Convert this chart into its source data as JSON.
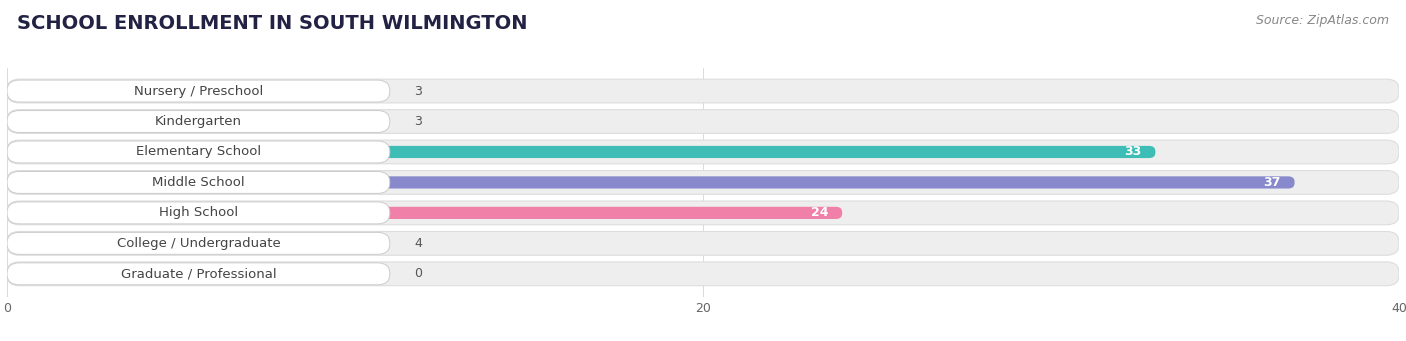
{
  "title": "SCHOOL ENROLLMENT IN SOUTH WILMINGTON",
  "source": "Source: ZipAtlas.com",
  "categories": [
    "Nursery / Preschool",
    "Kindergarten",
    "Elementary School",
    "Middle School",
    "High School",
    "College / Undergraduate",
    "Graduate / Professional"
  ],
  "values": [
    3,
    3,
    33,
    37,
    24,
    4,
    0
  ],
  "bar_colors": [
    "#a8c8e8",
    "#c8a8d8",
    "#3dbdb5",
    "#8888cc",
    "#f080a8",
    "#f8c898",
    "#f5a8a0"
  ],
  "row_bg_color": "#eeeeee",
  "row_border_color": "#dddddd",
  "label_box_bg": "#ffffff",
  "label_box_edge": "#cccccc",
  "title_fontsize": 14,
  "source_fontsize": 9,
  "label_fontsize": 9.5,
  "value_fontsize": 9,
  "xlim": [
    0,
    40
  ],
  "xticks": [
    0,
    20,
    40
  ],
  "background_color": "#ffffff"
}
